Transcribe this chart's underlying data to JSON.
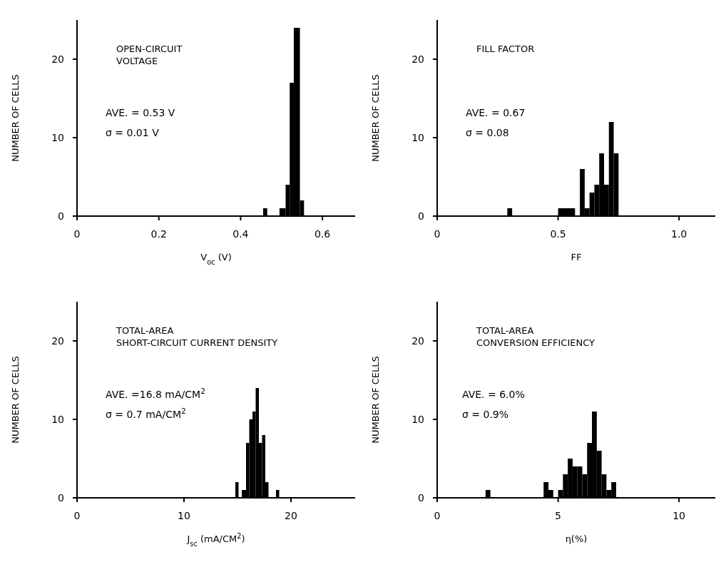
{
  "chart_data": [
    {
      "type": "histogram",
      "title": "OPEN-CIRCUIT\nVOLTAGE",
      "annotations": [
        "AVE. = 0.53 V",
        "σ  = 0.01 V"
      ],
      "xlabel": "V$_{oc}$ (V)",
      "ylabel": "NUMBER OF CELLS",
      "bins": [
        0.455,
        0.465,
        0.495,
        0.51,
        0.52,
        0.53,
        0.545,
        0.555
      ],
      "values": [
        1,
        0,
        1,
        4,
        17,
        24,
        2
      ],
      "color": "#000000",
      "xlim": [
        0,
        0.68
      ],
      "xticks": [
        0,
        0.2,
        0.4,
        0.6
      ],
      "ylim": [
        0,
        25
      ],
      "yticks": [
        0,
        10,
        20
      ],
      "grid": false
    },
    {
      "type": "histogram",
      "title": "FILL FACTOR",
      "annotations": [
        "AVE. = 0.67",
        "σ  = 0.08"
      ],
      "xlabel": "FF",
      "ylabel": "NUMBER OF CELLS",
      "bins": [
        0.29,
        0.31,
        0.5,
        0.57,
        0.59,
        0.61,
        0.63,
        0.65,
        0.67,
        0.69,
        0.71,
        0.73,
        0.75
      ],
      "values": [
        1,
        0,
        1,
        0,
        6,
        1,
        3,
        4,
        8,
        4,
        12,
        8
      ],
      "color": "#000000",
      "xlim": [
        0,
        1.15
      ],
      "xticks": [
        0,
        0.5,
        {
          "value": 1,
          "label": "1.0"
        }
      ],
      "ylim": [
        0,
        25
      ],
      "yticks": [
        0,
        10,
        20
      ],
      "grid": false
    },
    {
      "type": "histogram",
      "title": "TOTAL-AREA\nSHORT-CIRCUIT CURRENT DENSITY",
      "annotations": [
        "AVE. =16.8 mA/CM$^{2}$",
        "σ  = 0.7 mA/CM$^{2}$"
      ],
      "xlabel": "J$_{sc}$ (mA/CM$^{2}$)",
      "ylabel": "NUMBER OF CELLS",
      "bins": [
        14.8,
        15.1,
        15.4,
        15.8,
        16.1,
        16.4,
        16.7,
        17.0,
        17.3,
        17.6,
        17.9,
        18.6,
        18.9
      ],
      "values": [
        2,
        0,
        1,
        7,
        10,
        11,
        14,
        7,
        8,
        2,
        0,
        1
      ],
      "color": "#000000",
      "xlim": [
        0,
        26
      ],
      "xticks": [
        0,
        10,
        20
      ],
      "ylim": [
        0,
        25
      ],
      "yticks": [
        0,
        10,
        20
      ],
      "grid": false
    },
    {
      "type": "histogram",
      "title": "TOTAL-AREA\nCONVERSION EFFICIENCY",
      "annotations": [
        "AVE. = 6.0%",
        "σ  = 0.9%"
      ],
      "xlabel": "η(%)",
      "ylabel": "NUMBER OF CELLS",
      "bins": [
        2.0,
        2.2,
        4.4,
        4.6,
        4.8,
        5.0,
        5.2,
        5.4,
        5.6,
        5.8,
        6.0,
        6.2,
        6.4,
        6.6,
        6.8,
        7.0,
        7.2,
        7.4
      ],
      "values": [
        1,
        0,
        2,
        1,
        0,
        1,
        3,
        5,
        4,
        4,
        3,
        7,
        11,
        6,
        3,
        1,
        2
      ],
      "color": "#000000",
      "xlim": [
        0,
        11.5
      ],
      "xticks": [
        0,
        5,
        10
      ],
      "ylim": [
        0,
        25
      ],
      "yticks": [
        0,
        10,
        20
      ],
      "grid": false
    }
  ]
}
